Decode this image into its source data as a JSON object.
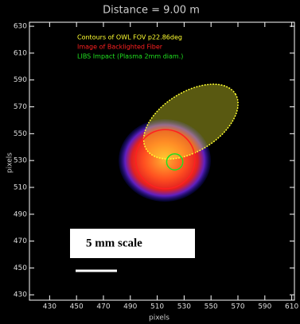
{
  "chart_data": {
    "type": "image-plot",
    "title": "Distance  =  9.00 m",
    "x_label": "pixels",
    "y_label": "pixels",
    "xlim": [
      415,
      612
    ],
    "ylim": [
      426,
      633
    ],
    "xticks": [
      430,
      450,
      470,
      490,
      510,
      530,
      550,
      570,
      590,
      610
    ],
    "yticks": [
      430,
      450,
      470,
      490,
      510,
      530,
      550,
      570,
      590,
      610,
      630
    ],
    "overlays": [
      {
        "name": "Contours of OWL FOV p22.86deg",
        "color": "#ffff30",
        "shape": "ellipse",
        "cx": 535,
        "cy": 559,
        "rx": 39,
        "ry": 22,
        "angle": -32
      },
      {
        "name": "Image of Backlighted Fiber",
        "color": "#ff2020",
        "shape": "ellipse",
        "cx": 516,
        "cy": 531,
        "rx": 22,
        "ry": 22,
        "angle": 0
      },
      {
        "name": "LIBS Impact (Plasma 2mm diam.)",
        "color": "#20e020",
        "shape": "ellipse",
        "cx": 523,
        "cy": 529,
        "rx": 6,
        "ry": 6,
        "angle": 0
      }
    ],
    "scale_label": "5 mm scale"
  }
}
